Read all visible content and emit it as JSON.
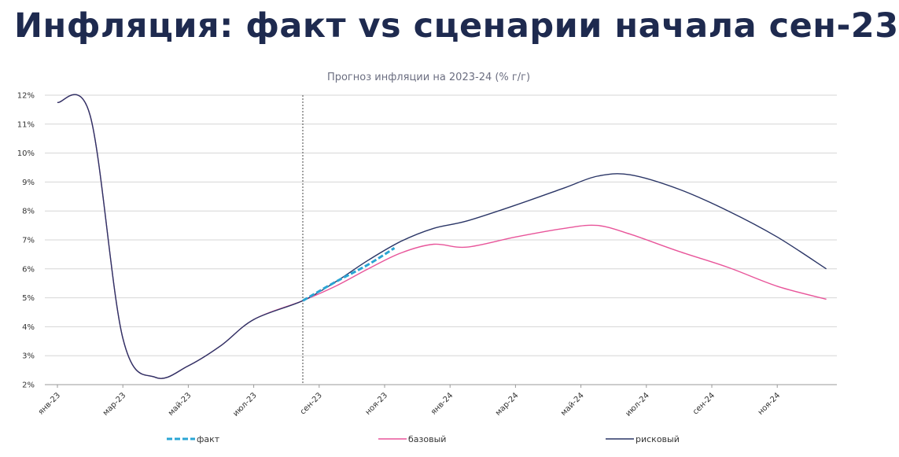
{
  "page": {
    "headline": "Инфляция: факт vs сценарии начала сен-23"
  },
  "chart_data": {
    "type": "line",
    "title": "Прогноз инфляции на 2023-24 (% г/г)",
    "xlabel": "",
    "ylabel": "",
    "ylim": [
      2,
      12
    ],
    "y_ticks": [
      "2%",
      "3%",
      "4%",
      "5%",
      "6%",
      "7%",
      "8%",
      "9%",
      "10%",
      "11%",
      "12%"
    ],
    "x_ticks": [
      "янв-23",
      "мар-23",
      "май-23",
      "июл-23",
      "сен-23",
      "ноя-23",
      "янв-24",
      "мар-24",
      "май-24",
      "июл-24",
      "сен-24",
      "ноя-24"
    ],
    "vertical_marker_month": 7.5,
    "series": [
      {
        "name": "факт",
        "color": "#2aa5d4",
        "style": "dashed",
        "points": [
          [
            7.5,
            4.9
          ],
          [
            8.5,
            5.55
          ],
          [
            9.5,
            6.15
          ],
          [
            10.3,
            6.72
          ]
        ]
      },
      {
        "name": "базовый",
        "color": "#e8559a",
        "style": "solid",
        "points": [
          [
            0,
            11.75
          ],
          [
            1,
            11.3
          ],
          [
            2,
            3.6
          ],
          [
            3,
            2.25
          ],
          [
            4,
            2.65
          ],
          [
            5,
            3.35
          ],
          [
            6,
            4.25
          ],
          [
            7.5,
            4.9
          ],
          [
            8.5,
            5.4
          ],
          [
            9.5,
            6.0
          ],
          [
            10.5,
            6.55
          ],
          [
            11.5,
            6.85
          ],
          [
            12.5,
            6.75
          ],
          [
            14,
            7.1
          ],
          [
            15.5,
            7.4
          ],
          [
            16.5,
            7.5
          ],
          [
            17.5,
            7.2
          ],
          [
            19,
            6.6
          ],
          [
            20.5,
            6.05
          ],
          [
            22,
            5.4
          ],
          [
            23.5,
            4.95
          ]
        ]
      },
      {
        "name": "рисковый",
        "color": "#2a3566",
        "style": "solid",
        "points": [
          [
            0,
            11.75
          ],
          [
            1,
            11.3
          ],
          [
            2,
            3.6
          ],
          [
            3,
            2.25
          ],
          [
            4,
            2.65
          ],
          [
            5,
            3.35
          ],
          [
            6,
            4.25
          ],
          [
            7.5,
            4.9
          ],
          [
            8.5,
            5.55
          ],
          [
            9.5,
            6.3
          ],
          [
            10.5,
            6.95
          ],
          [
            11.5,
            7.4
          ],
          [
            12.5,
            7.65
          ],
          [
            14,
            8.2
          ],
          [
            15.5,
            8.8
          ],
          [
            16.5,
            9.2
          ],
          [
            17.5,
            9.25
          ],
          [
            19,
            8.75
          ],
          [
            20.5,
            8.0
          ],
          [
            22,
            7.1
          ],
          [
            23.5,
            6.0
          ]
        ]
      }
    ]
  }
}
